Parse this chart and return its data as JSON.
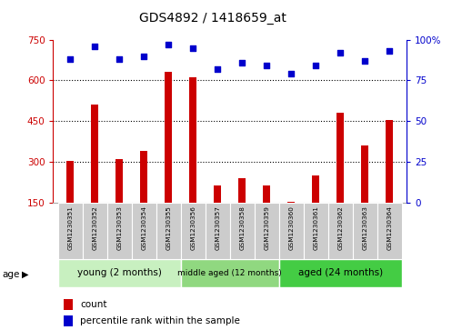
{
  "title": "GDS4892 / 1418659_at",
  "samples": [
    "GSM1230351",
    "GSM1230352",
    "GSM1230353",
    "GSM1230354",
    "GSM1230355",
    "GSM1230356",
    "GSM1230357",
    "GSM1230358",
    "GSM1230359",
    "GSM1230360",
    "GSM1230361",
    "GSM1230362",
    "GSM1230363",
    "GSM1230364"
  ],
  "counts": [
    305,
    510,
    310,
    340,
    630,
    610,
    215,
    240,
    215,
    155,
    250,
    480,
    360,
    455
  ],
  "percentile_ranks": [
    88,
    96,
    88,
    90,
    97,
    95,
    82,
    86,
    84,
    79,
    84,
    92,
    87,
    93
  ],
  "ylim_left": [
    150,
    750
  ],
  "ylim_right": [
    0,
    100
  ],
  "yticks_left": [
    150,
    300,
    450,
    600,
    750
  ],
  "yticks_right": [
    0,
    25,
    50,
    75,
    100
  ],
  "groups": [
    {
      "label": "young (2 months)",
      "start": 0,
      "end": 5
    },
    {
      "label": "middle aged (12 months)",
      "start": 5,
      "end": 9
    },
    {
      "label": "aged (24 months)",
      "start": 9,
      "end": 14
    }
  ],
  "group_colors": [
    "#c8f0c0",
    "#90d880",
    "#44cc44"
  ],
  "bar_color": "#cc0000",
  "dot_color": "#0000cc",
  "bg_color": "#ffffff",
  "sample_bg_color": "#cccccc",
  "left_axis_color": "#cc0000",
  "right_axis_color": "#0000cc",
  "age_label": "age",
  "legend_count": "count",
  "legend_percentile": "percentile rank within the sample",
  "bar_width": 0.3
}
